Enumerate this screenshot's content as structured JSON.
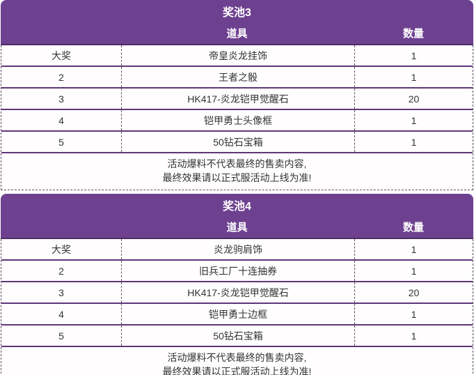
{
  "colors": {
    "header_bg": "#6E4190",
    "header_text": "#ffffff",
    "row_divider": "#5F3577",
    "dashed_border": "#5B4A5F",
    "body_text": "#333333",
    "body_bg": "#FFFDFE"
  },
  "tables": [
    {
      "title": "奖池3",
      "columns": {
        "item": "道具",
        "qty": "数量"
      },
      "rows": [
        {
          "rank": "大奖",
          "item": "帝皇炎龙挂饰",
          "qty": "1"
        },
        {
          "rank": "2",
          "item": "王者之骰",
          "qty": "1"
        },
        {
          "rank": "3",
          "item": "HK417-炎龙铠甲觉醒石",
          "qty": "20"
        },
        {
          "rank": "4",
          "item": "铠甲勇士头像框",
          "qty": "1"
        },
        {
          "rank": "5",
          "item": "50钻石宝箱",
          "qty": "1"
        }
      ],
      "note_lines": [
        "活动爆料不代表最终的售卖内容,",
        "最终效果请以正式服活动上线为准!"
      ]
    },
    {
      "title": "奖池4",
      "columns": {
        "item": "道具",
        "qty": "数量"
      },
      "rows": [
        {
          "rank": "大奖",
          "item": "炎龙驹肩饰",
          "qty": "1"
        },
        {
          "rank": "2",
          "item": "旧兵工厂十连抽券",
          "qty": "1"
        },
        {
          "rank": "3",
          "item": "HK417-炎龙铠甲觉醒石",
          "qty": "20"
        },
        {
          "rank": "4",
          "item": "铠甲勇士边框",
          "qty": "1"
        },
        {
          "rank": "5",
          "item": "50钻石宝箱",
          "qty": "1"
        }
      ],
      "note_lines": [
        "活动爆料不代表最终的售卖内容,",
        "最终效果请以正式服活动上线为准!"
      ]
    }
  ]
}
